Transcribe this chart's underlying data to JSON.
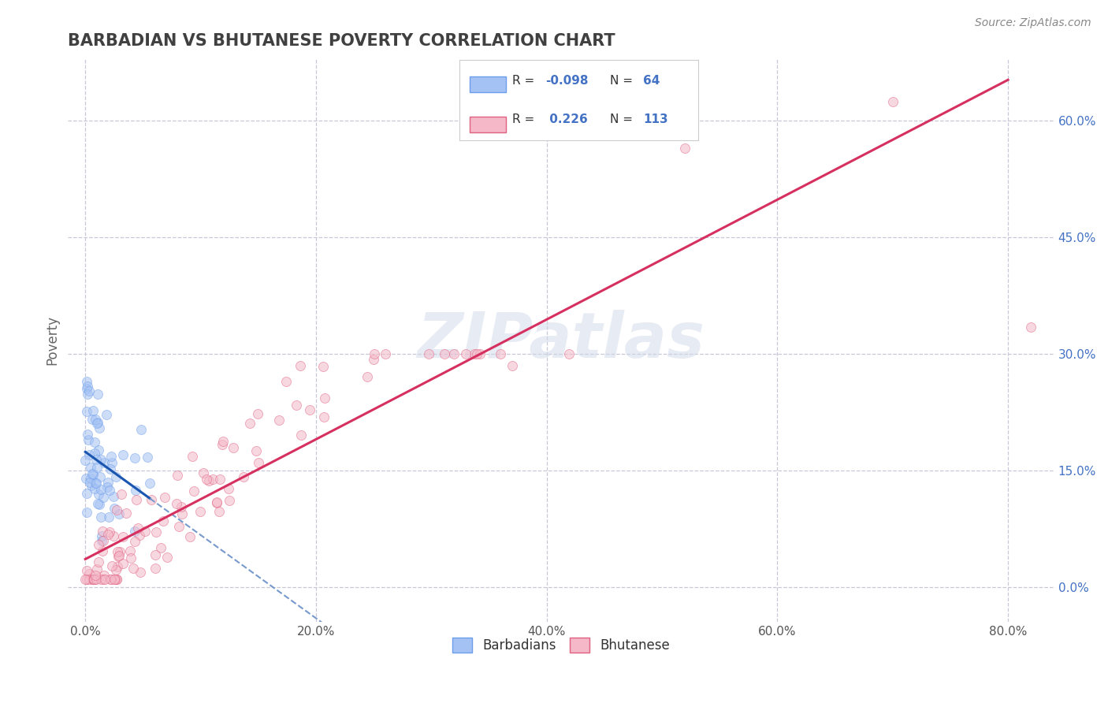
{
  "title": "BARBADIAN VS BHUTANESE POVERTY CORRELATION CHART",
  "source": "Source: ZipAtlas.com",
  "xlabel_vals": [
    0.0,
    0.2,
    0.4,
    0.6,
    0.8
  ],
  "ylabel_vals": [
    0.0,
    0.15,
    0.3,
    0.45,
    0.6
  ],
  "xlim": [
    -0.015,
    0.84
  ],
  "ylim": [
    -0.045,
    0.68
  ],
  "barbadian_R": -0.098,
  "barbadian_N": 64,
  "bhutanese_R": 0.226,
  "bhutanese_N": 113,
  "blue_color": "#a4c2f4",
  "blue_edge": "#6d9eeb",
  "pink_color": "#f4b8c8",
  "pink_edge": "#e06080",
  "blue_line_color": "#1a56b0",
  "pink_line_color": "#d63060",
  "blue_dash_color": "#7799cc",
  "legend_text_color": "#4472c4",
  "watermark": "ZIPatlas",
  "background_color": "#ffffff",
  "grid_color": "#c8c8d8",
  "title_color": "#404040",
  "ylabel": "Poverty",
  "marker_size": 75,
  "marker_alpha": 0.55
}
